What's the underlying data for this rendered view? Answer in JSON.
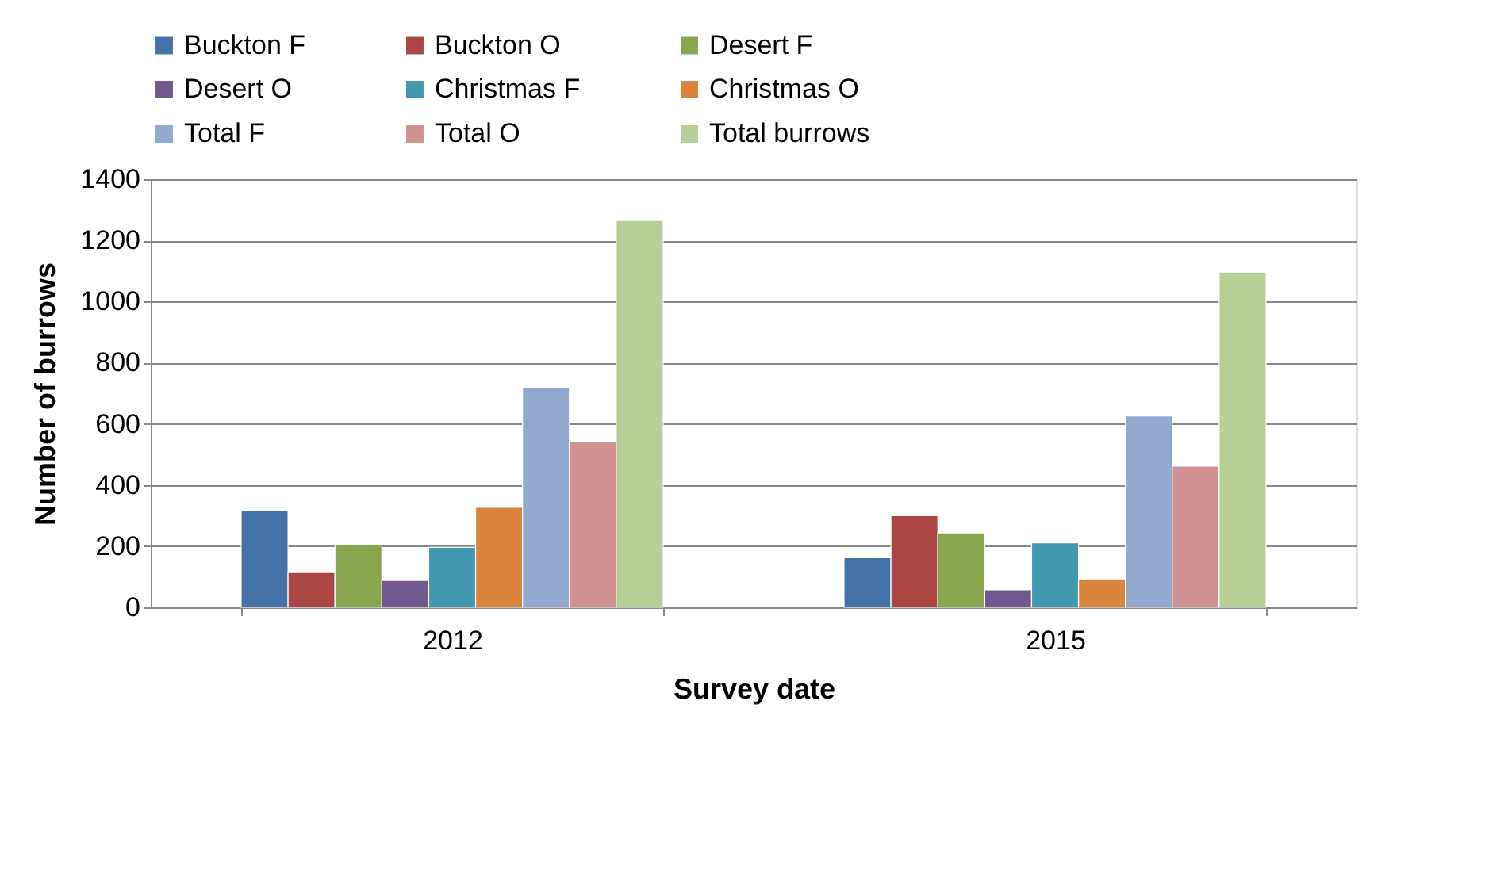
{
  "chart_data": {
    "type": "bar",
    "xlabel": "Survey date",
    "ylabel": "Number of burrows",
    "categories": [
      "2012",
      "2015"
    ],
    "series": [
      {
        "name": "Buckton F",
        "color": "#4572a7",
        "values": [
          315,
          162
        ]
      },
      {
        "name": "Buckton O",
        "color": "#aa4643",
        "values": [
          114,
          300
        ]
      },
      {
        "name": "Desert F",
        "color": "#89a54e",
        "values": [
          205,
          243
        ]
      },
      {
        "name": "Desert O",
        "color": "#71588f",
        "values": [
          88,
          57
        ]
      },
      {
        "name": "Christmas F",
        "color": "#4198af",
        "values": [
          196,
          211
        ]
      },
      {
        "name": "Christmas O",
        "color": "#db843d",
        "values": [
          327,
          93
        ]
      },
      {
        "name": "Total F",
        "color": "#93a9cf",
        "values": [
          717,
          626
        ]
      },
      {
        "name": "Total O",
        "color": "#d19392",
        "values": [
          542,
          462
        ]
      },
      {
        "name": "Total burrows",
        "color": "#b9cd96",
        "values": [
          1265,
          1096
        ]
      }
    ],
    "ylim": [
      0,
      1400
    ],
    "yticks": [
      0,
      200,
      400,
      600,
      800,
      1000,
      1200,
      1400
    ],
    "grid": "y",
    "legend": "top"
  }
}
